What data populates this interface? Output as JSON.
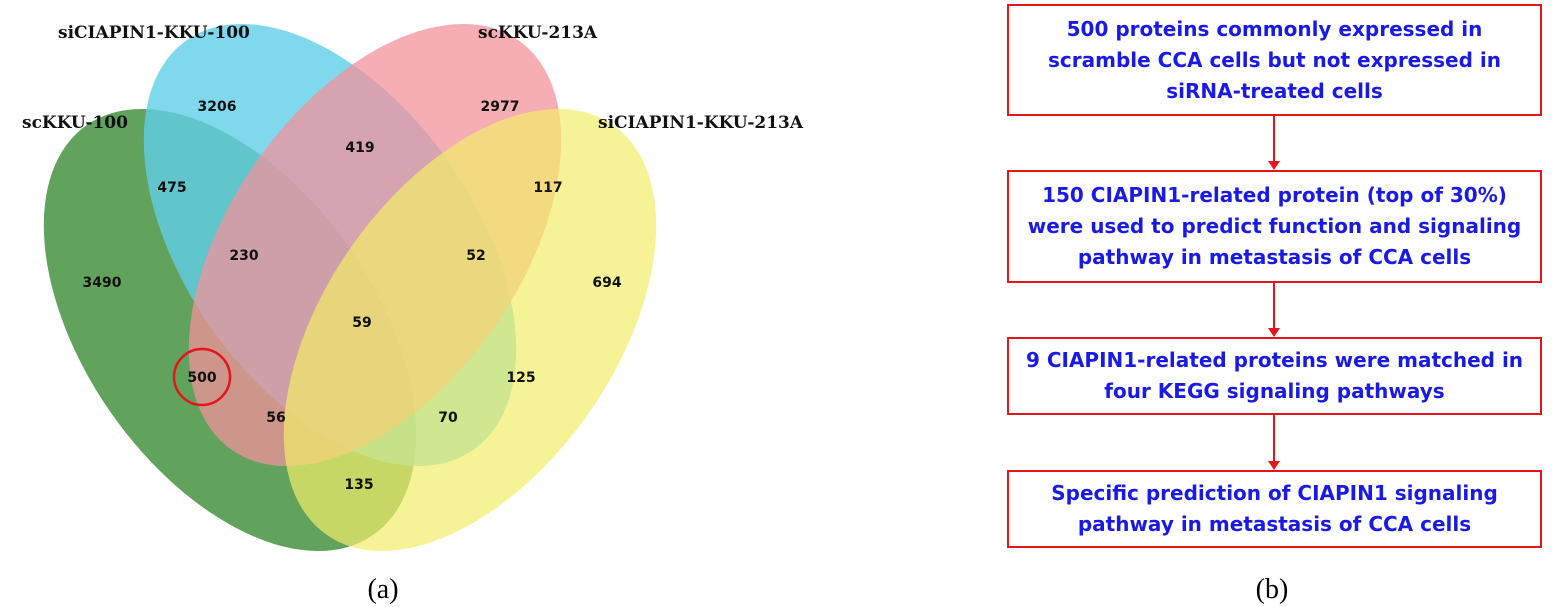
{
  "venn": {
    "sets": {
      "sc100": "scKKU-100",
      "si100": "siCIAPIN1-KKU-100",
      "sc213": "scKKU-213A",
      "si213": "siCIAPIN1-KKU-213A"
    },
    "counts": {
      "sc100_only": "3490",
      "si100_only": "3206",
      "sc213_only": "2977",
      "si213_only": "694",
      "sc100_si100": "475",
      "si100_sc213": "419",
      "sc213_si213": "117",
      "sc100_si100_sc213": "230",
      "si100_sc213_si213": "52",
      "all_four": "59",
      "sc100_sc213": "500",
      "sc100_sc213_si213": "56",
      "si100_si213": "125",
      "sc100_si100_si213": "70",
      "sc100_si213": "135"
    },
    "colors": {
      "sc100": "#3f8f3a",
      "si100": "#3fc4e3",
      "sc213": "#f07a86",
      "si213": "#f0e94a",
      "highlight": "#e8141b"
    },
    "panel_label": "(a)"
  },
  "flow": {
    "steps": [
      "500 proteins commonly expressed in\nscramble CCA cells but not expressed in\nsiRNA-treated cells",
      "150 CIAPIN1-related protein (top of 30%)\nwere used to predict function and signaling\npathway in metastasis of CCA cells",
      "9 CIAPIN1-related proteins were matched in\nfour KEGG signaling pathways",
      "Specific prediction of CIAPIN1 signaling\npathway in metastasis of CCA cells"
    ],
    "colors": {
      "border": "#e8141b",
      "text": "#1a1ae8"
    },
    "panel_label": "(b)"
  }
}
